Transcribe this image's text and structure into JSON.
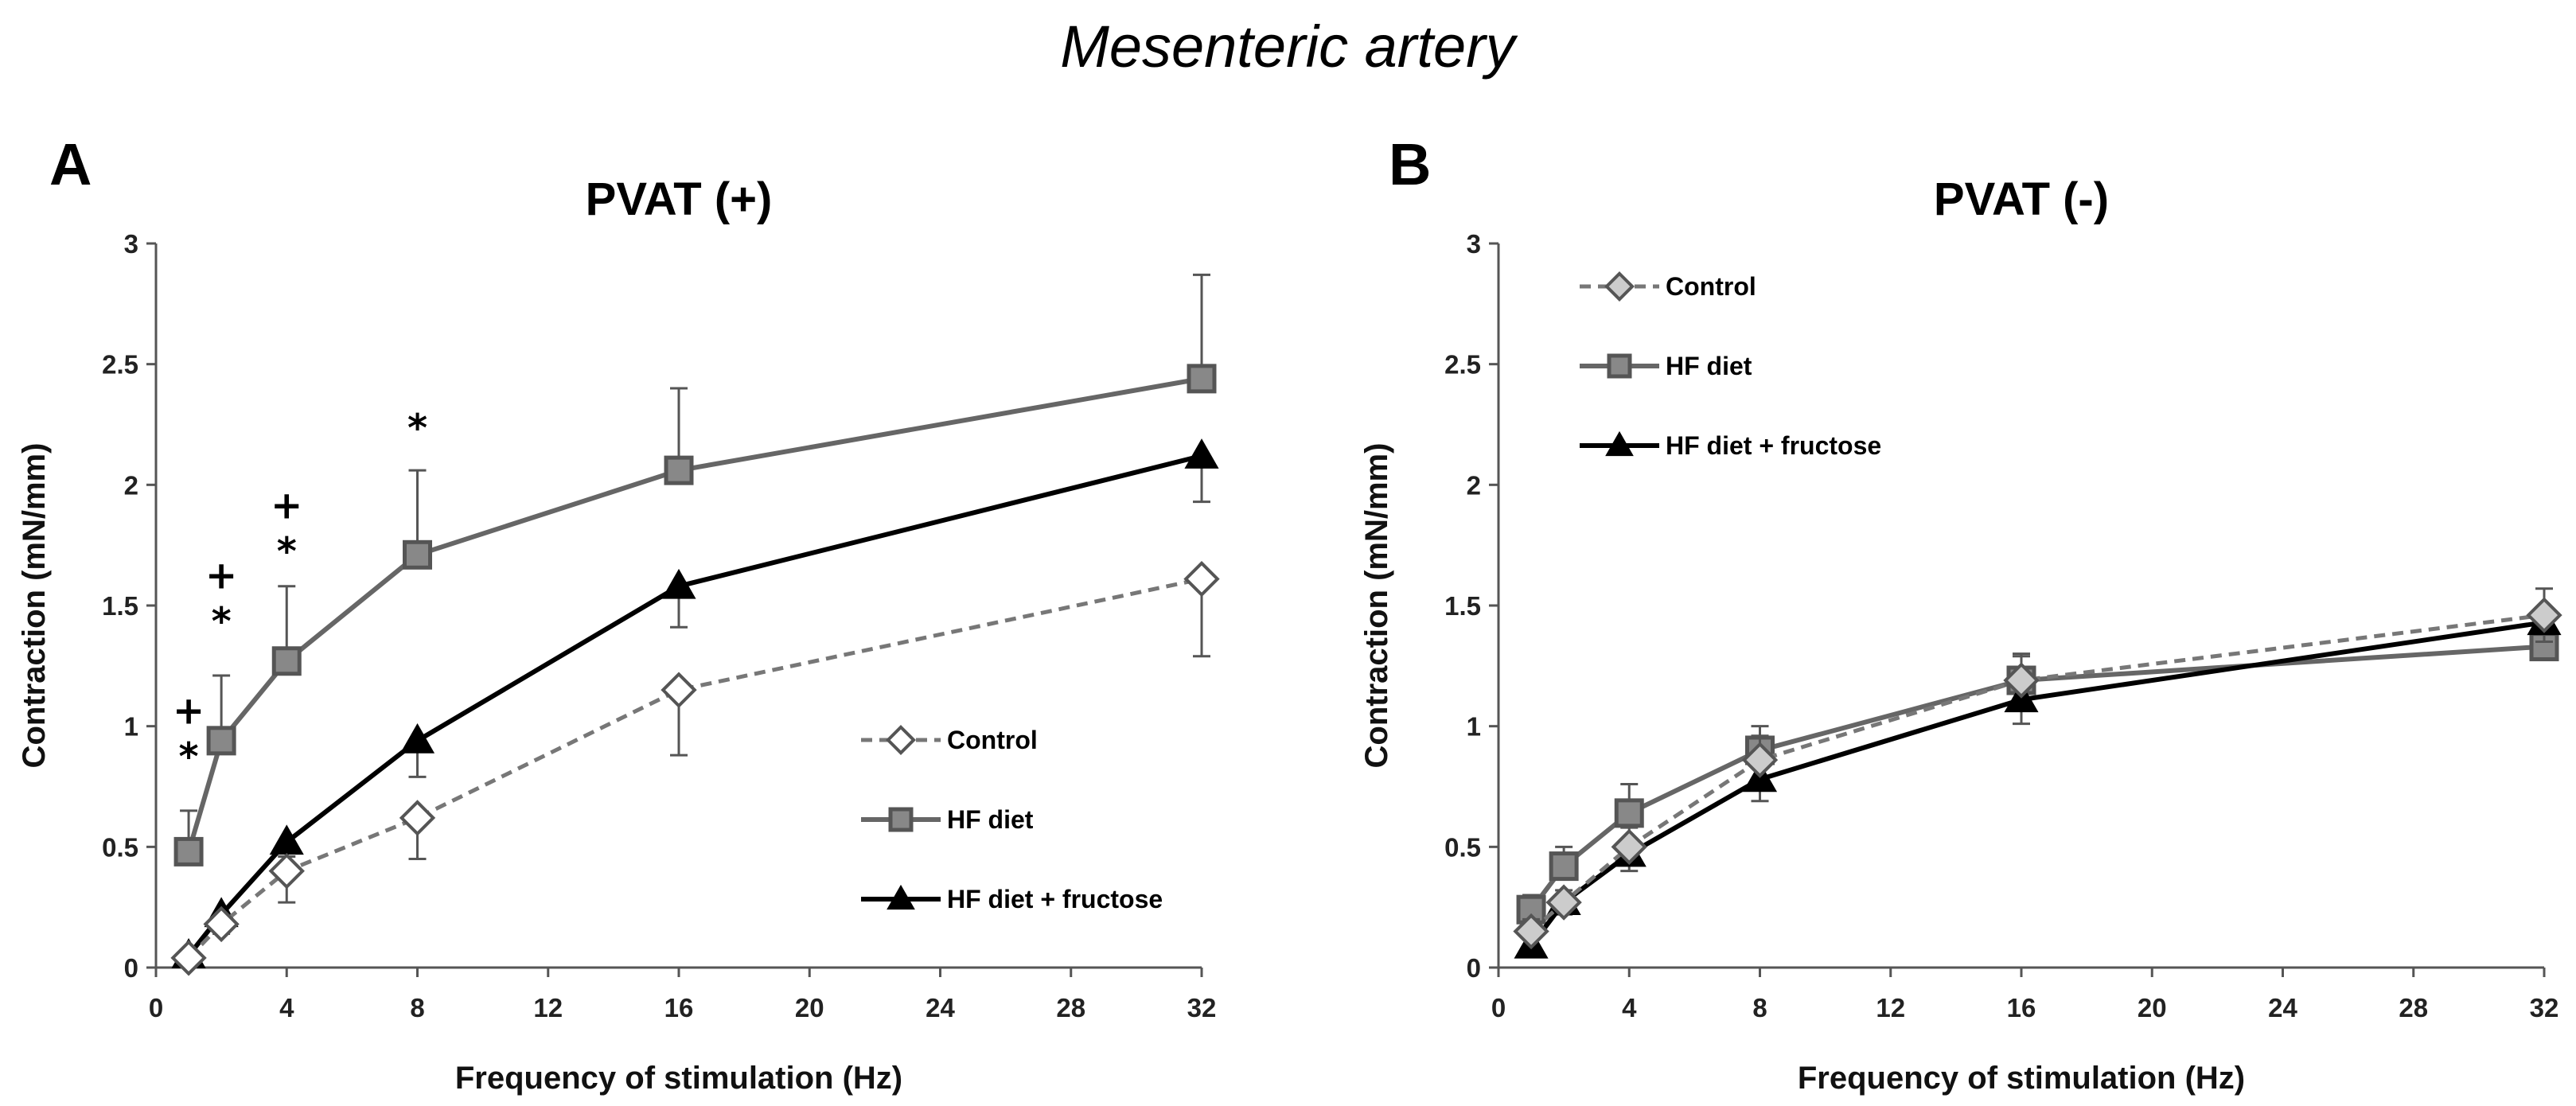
{
  "figure_title": "Mesenteric artery",
  "colors": {
    "control": "#777777",
    "hf": "#666666",
    "hf_fructose": "#000000",
    "hf_marker_fill": "#888888",
    "control_marker_fill": "#ffffff",
    "control_marker_fill_b": "#cccccc"
  },
  "chart_data": [
    {
      "panel": "A",
      "type": "line",
      "title": "PVAT (+)",
      "xlabel": "Frequency of stimulation (Hz)",
      "ylabel": "Contraction (mN/mm)",
      "xlim": [
        0,
        32
      ],
      "ylim": [
        0,
        3
      ],
      "x_ticks": [
        0,
        4,
        8,
        12,
        16,
        20,
        24,
        28,
        32
      ],
      "y_ticks": [
        0,
        0.5,
        1,
        1.5,
        2,
        2.5,
        3
      ],
      "x_tick_labels": [
        "0",
        "4",
        "8",
        "12",
        "16",
        "20",
        "24",
        "28",
        "32"
      ],
      "y_tick_labels": [
        "0",
        "0.5",
        "1",
        "1.5",
        "2",
        "2.5",
        "3"
      ],
      "legend_position": "lower-right",
      "x": [
        1,
        2,
        4,
        8,
        16,
        32
      ],
      "series": [
        {
          "key": "control",
          "name": "Control",
          "marker": "diamond",
          "dashed": true,
          "values": [
            0.04,
            0.18,
            0.4,
            0.62,
            1.15,
            1.61
          ],
          "err": [
            0.02,
            0.04,
            0.13,
            0.17,
            0.27,
            0.32
          ],
          "err_dir": "down"
        },
        {
          "key": "hf",
          "name": "HF diet",
          "marker": "square",
          "dashed": false,
          "values": [
            0.48,
            0.94,
            1.27,
            1.71,
            2.06,
            2.44
          ],
          "err": [
            0.17,
            0.27,
            0.31,
            0.35,
            0.34,
            0.43
          ],
          "err_dir": "up"
        },
        {
          "key": "hf_fructose",
          "name": "HF diet + fructose",
          "marker": "triangle",
          "dashed": false,
          "values": [
            0.05,
            0.22,
            0.52,
            0.94,
            1.58,
            2.12
          ],
          "err": [
            0.02,
            0.04,
            0.06,
            0.15,
            0.17,
            0.19
          ],
          "err_dir": "down"
        }
      ],
      "annotations": [
        {
          "x": 1,
          "lines": [
            "+",
            "*"
          ],
          "y": 0.82
        },
        {
          "x": 2,
          "lines": [
            "+",
            "*"
          ],
          "y": 1.38
        },
        {
          "x": 4,
          "lines": [
            "+",
            "*"
          ],
          "y": 1.67
        },
        {
          "x": 8,
          "lines": [
            "*"
          ],
          "y": 2.18
        }
      ]
    },
    {
      "panel": "B",
      "type": "line",
      "title": "PVAT (-)",
      "xlabel": "Frequency of stimulation (Hz)",
      "ylabel": "Contraction (mN/mm)",
      "xlim": [
        0,
        32
      ],
      "ylim": [
        0,
        3
      ],
      "x_ticks": [
        0,
        4,
        8,
        12,
        16,
        20,
        24,
        28,
        32
      ],
      "y_ticks": [
        0,
        0.5,
        1,
        1.5,
        2,
        2.5,
        3
      ],
      "x_tick_labels": [
        "0",
        "4",
        "8",
        "12",
        "16",
        "20",
        "24",
        "28",
        "32"
      ],
      "y_tick_labels": [
        "0",
        "0.5",
        "1",
        "1.5",
        "2",
        "2.5",
        "3"
      ],
      "legend_position": "top-left",
      "x": [
        1,
        2,
        4,
        8,
        16,
        32
      ],
      "series": [
        {
          "key": "control",
          "name": "Control",
          "marker": "diamond",
          "dashed": true,
          "values": [
            0.15,
            0.27,
            0.5,
            0.86,
            1.19,
            1.46
          ],
          "err": [
            0.05,
            0.05,
            0.08,
            0.1,
            0.1,
            0.11
          ],
          "err_dir": "up"
        },
        {
          "key": "hf",
          "name": "HF diet",
          "marker": "square",
          "dashed": false,
          "values": [
            0.24,
            0.42,
            0.64,
            0.9,
            1.19,
            1.33
          ],
          "err": [
            0.06,
            0.08,
            0.12,
            0.1,
            0.11,
            0.05
          ],
          "err_dir": "up"
        },
        {
          "key": "hf_fructose",
          "name": "HF diet + fructose",
          "marker": "triangle",
          "dashed": false,
          "values": [
            0.09,
            0.27,
            0.47,
            0.78,
            1.11,
            1.43
          ],
          "err": [
            0.03,
            0.05,
            0.07,
            0.09,
            0.1,
            0.08
          ],
          "err_dir": "down"
        }
      ],
      "annotations": []
    }
  ]
}
